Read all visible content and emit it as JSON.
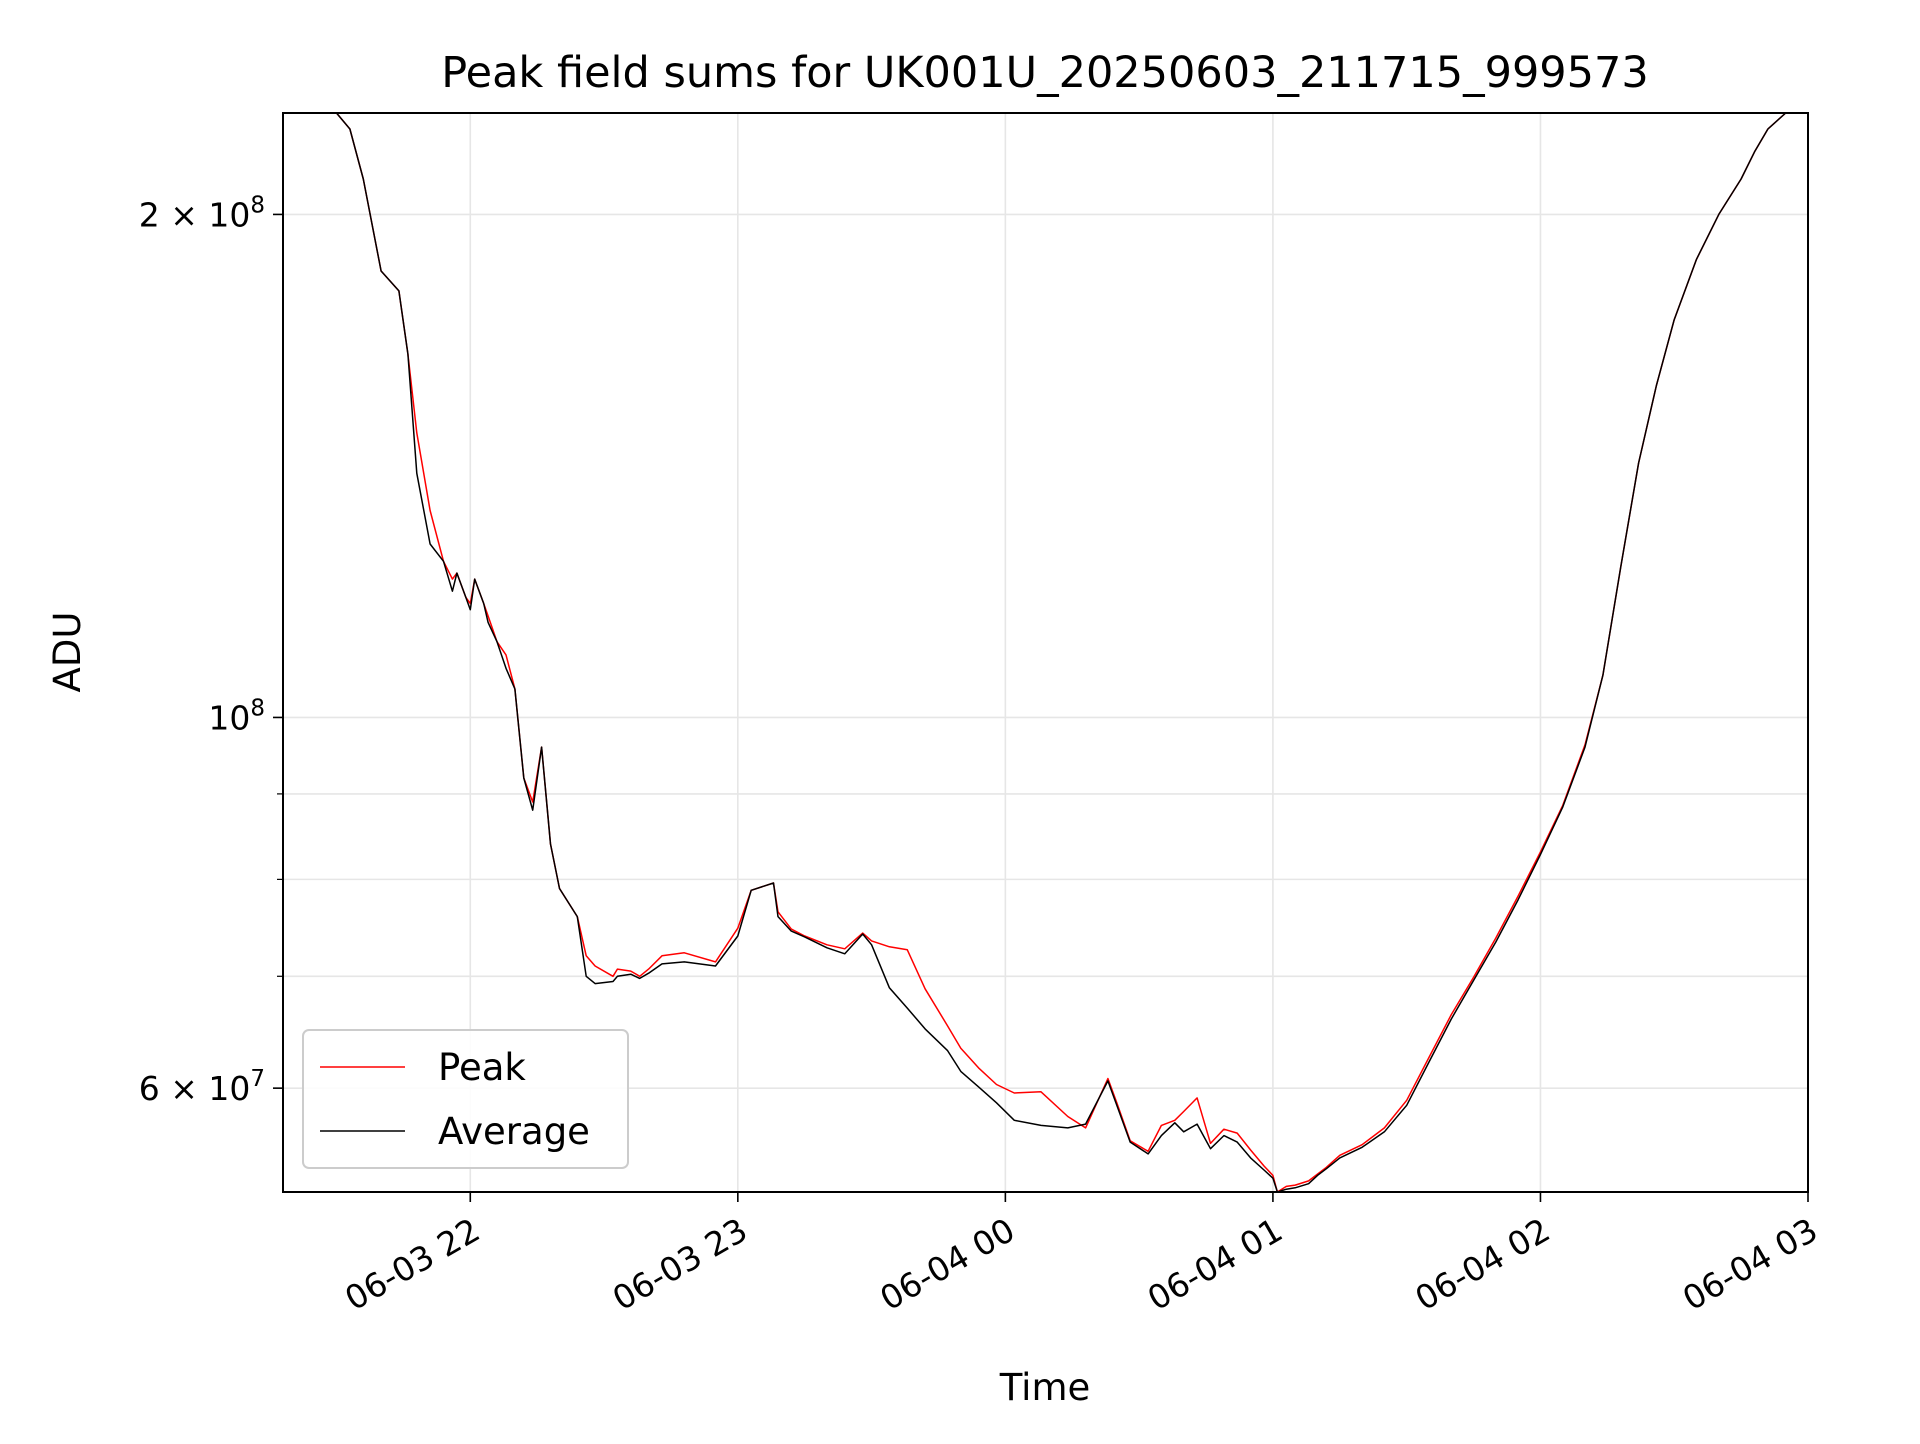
{
  "chart_data": {
    "type": "line",
    "title": "Peak field sums for UK001U_20250603_211715_999573",
    "xlabel": "Time",
    "ylabel": "ADU",
    "yscale": "log",
    "xlim": [
      "2025-06-03 21:18",
      "2025-06-04 03:00"
    ],
    "ylim": [
      52000000,
      230000000
    ],
    "x_ticks": [
      "06-03 22",
      "06-03 23",
      "06-04 00",
      "06-04 01",
      "06-04 02",
      "06-04 03"
    ],
    "x_tick_times": [
      "2025-06-03 22:00",
      "2025-06-03 23:00",
      "2025-06-04 00:00",
      "2025-06-04 01:00",
      "2025-06-04 02:00",
      "2025-06-04 03:00"
    ],
    "y_major_ticks": [
      {
        "value": 100000000,
        "mantissa": "",
        "base": "10",
        "exponent": "8"
      },
      {
        "value": 200000000,
        "mantissa": "2 × ",
        "base": "10",
        "exponent": "8"
      },
      {
        "value": 60000000,
        "mantissa": "6 × ",
        "base": "10",
        "exponent": "7"
      }
    ],
    "y_minor_values": [
      70000000,
      80000000,
      90000000
    ],
    "grid": true,
    "legend": {
      "position": "lower-left"
    },
    "series": [
      {
        "name": "Peak",
        "color": "#ff0000",
        "x": [
          "2025-06-03 21:18",
          "2025-06-03 21:25",
          "2025-06-03 21:30",
          "2025-06-03 21:33",
          "2025-06-03 21:36",
          "2025-06-03 21:40",
          "2025-06-03 21:44",
          "2025-06-03 21:46",
          "2025-06-03 21:48",
          "2025-06-03 21:51",
          "2025-06-03 21:54",
          "2025-06-03 21:56",
          "2025-06-03 21:57",
          "2025-06-03 21:59",
          "2025-06-03 22:00",
          "2025-06-03 22:01",
          "2025-06-03 22:03",
          "2025-06-03 22:04",
          "2025-06-03 22:06",
          "2025-06-03 22:08",
          "2025-06-03 22:10",
          "2025-06-03 22:12",
          "2025-06-03 22:14",
          "2025-06-03 22:16",
          "2025-06-03 22:18",
          "2025-06-03 22:20",
          "2025-06-03 22:24",
          "2025-06-03 22:26",
          "2025-06-03 22:28",
          "2025-06-03 22:32",
          "2025-06-03 22:33",
          "2025-06-03 22:36",
          "2025-06-03 22:38",
          "2025-06-03 22:40",
          "2025-06-03 22:43",
          "2025-06-03 22:48",
          "2025-06-03 22:55",
          "2025-06-03 23:00",
          "2025-06-03 23:03",
          "2025-06-03 23:08",
          "2025-06-03 23:09",
          "2025-06-03 23:12",
          "2025-06-03 23:15",
          "2025-06-03 23:20",
          "2025-06-03 23:24",
          "2025-06-03 23:28",
          "2025-06-03 23:30",
          "2025-06-03 23:34",
          "2025-06-03 23:38",
          "2025-06-03 23:42",
          "2025-06-03 23:47",
          "2025-06-03 23:50",
          "2025-06-03 23:54",
          "2025-06-03 23:58",
          "2025-06-04 00:02",
          "2025-06-04 00:08",
          "2025-06-04 00:14",
          "2025-06-04 00:18",
          "2025-06-04 00:23",
          "2025-06-04 00:25",
          "2025-06-04 00:28",
          "2025-06-04 00:32",
          "2025-06-04 00:35",
          "2025-06-04 00:38",
          "2025-06-04 00:40",
          "2025-06-04 00:43",
          "2025-06-04 00:46",
          "2025-06-04 00:49",
          "2025-06-04 00:52",
          "2025-06-04 00:55",
          "2025-06-04 00:58",
          "2025-06-04 01:00",
          "2025-06-04 01:01",
          "2025-06-04 01:03",
          "2025-06-04 01:05",
          "2025-06-04 01:08",
          "2025-06-04 01:10",
          "2025-06-04 01:12",
          "2025-06-04 01:15",
          "2025-06-04 01:20",
          "2025-06-04 01:25",
          "2025-06-04 01:30",
          "2025-06-04 01:35",
          "2025-06-04 01:40",
          "2025-06-04 01:45",
          "2025-06-04 01:50",
          "2025-06-04 01:55",
          "2025-06-04 02:00",
          "2025-06-04 02:05",
          "2025-06-04 02:10",
          "2025-06-04 02:14",
          "2025-06-04 02:18",
          "2025-06-04 02:22",
          "2025-06-04 02:26",
          "2025-06-04 02:30",
          "2025-06-04 02:35",
          "2025-06-04 02:40",
          "2025-06-04 02:45",
          "2025-06-04 02:48",
          "2025-06-04 02:51",
          "2025-06-04 02:55",
          "2025-06-04 03:00"
        ],
        "y": [
          230000000,
          230000000,
          230000000,
          225000000,
          210000000,
          185000000,
          180000000,
          165000000,
          148000000,
          133000000,
          124000000,
          121000000,
          122000000,
          118000000,
          117000000,
          121000000,
          117000000,
          115000000,
          111000000,
          109000000,
          104000000,
          92000000,
          89000000,
          96000000,
          84000000,
          79000000,
          76000000,
          72000000,
          71000000,
          70000000,
          70700000,
          70500000,
          70000000,
          70700000,
          72000000,
          72300000,
          71400000,
          74800000,
          78800000,
          79600000,
          76500000,
          74700000,
          74000000,
          73100000,
          72700000,
          74300000,
          73500000,
          72900000,
          72600000,
          68800000,
          65400000,
          63400000,
          61700000,
          60300000,
          59600000,
          59700000,
          57700000,
          56800000,
          60800000,
          58800000,
          55800000,
          55000000,
          57000000,
          57400000,
          58100000,
          59200000,
          55600000,
          56700000,
          56400000,
          55100000,
          53900000,
          53200000,
          52000000,
          52400000,
          52500000,
          52800000,
          53300000,
          53800000,
          54700000,
          55500000,
          56800000,
          59000000,
          62600000,
          66400000,
          69900000,
          73800000,
          78200000,
          83100000,
          88600000,
          96300000,
          106000000,
          123000000,
          142000000,
          158000000,
          173000000,
          188000000,
          200000000,
          210000000,
          218000000,
          225000000,
          230000000,
          230000000
        ]
      },
      {
        "name": "Average",
        "color": "#000000",
        "x": [
          "2025-06-03 21:18",
          "2025-06-03 21:25",
          "2025-06-03 21:30",
          "2025-06-03 21:33",
          "2025-06-03 21:36",
          "2025-06-03 21:40",
          "2025-06-03 21:44",
          "2025-06-03 21:46",
          "2025-06-03 21:48",
          "2025-06-03 21:51",
          "2025-06-03 21:54",
          "2025-06-03 21:56",
          "2025-06-03 21:57",
          "2025-06-03 21:59",
          "2025-06-03 22:00",
          "2025-06-03 22:01",
          "2025-06-03 22:03",
          "2025-06-03 22:04",
          "2025-06-03 22:06",
          "2025-06-03 22:08",
          "2025-06-03 22:10",
          "2025-06-03 22:12",
          "2025-06-03 22:14",
          "2025-06-03 22:16",
          "2025-06-03 22:18",
          "2025-06-03 22:20",
          "2025-06-03 22:24",
          "2025-06-03 22:26",
          "2025-06-03 22:28",
          "2025-06-03 22:32",
          "2025-06-03 22:33",
          "2025-06-03 22:36",
          "2025-06-03 22:38",
          "2025-06-03 22:40",
          "2025-06-03 22:43",
          "2025-06-03 22:48",
          "2025-06-03 22:55",
          "2025-06-03 23:00",
          "2025-06-03 23:03",
          "2025-06-03 23:08",
          "2025-06-03 23:09",
          "2025-06-03 23:12",
          "2025-06-03 23:15",
          "2025-06-03 23:20",
          "2025-06-03 23:24",
          "2025-06-03 23:28",
          "2025-06-03 23:30",
          "2025-06-03 23:34",
          "2025-06-03 23:38",
          "2025-06-03 23:42",
          "2025-06-03 23:47",
          "2025-06-03 23:50",
          "2025-06-03 23:54",
          "2025-06-03 23:58",
          "2025-06-04 00:02",
          "2025-06-04 00:08",
          "2025-06-04 00:14",
          "2025-06-04 00:18",
          "2025-06-04 00:23",
          "2025-06-04 00:25",
          "2025-06-04 00:28",
          "2025-06-04 00:32",
          "2025-06-04 00:35",
          "2025-06-04 00:38",
          "2025-06-04 00:40",
          "2025-06-04 00:43",
          "2025-06-04 00:46",
          "2025-06-04 00:49",
          "2025-06-04 00:52",
          "2025-06-04 00:55",
          "2025-06-04 00:58",
          "2025-06-04 01:00",
          "2025-06-04 01:01",
          "2025-06-04 01:03",
          "2025-06-04 01:05",
          "2025-06-04 01:08",
          "2025-06-04 01:10",
          "2025-06-04 01:12",
          "2025-06-04 01:15",
          "2025-06-04 01:20",
          "2025-06-04 01:25",
          "2025-06-04 01:30",
          "2025-06-04 01:35",
          "2025-06-04 01:40",
          "2025-06-04 01:45",
          "2025-06-04 01:50",
          "2025-06-04 01:55",
          "2025-06-04 02:00",
          "2025-06-04 02:05",
          "2025-06-04 02:10",
          "2025-06-04 02:14",
          "2025-06-04 02:18",
          "2025-06-04 02:22",
          "2025-06-04 02:26",
          "2025-06-04 02:30",
          "2025-06-04 02:35",
          "2025-06-04 02:40",
          "2025-06-04 02:45",
          "2025-06-04 02:48",
          "2025-06-04 02:51",
          "2025-06-04 02:55",
          "2025-06-04 03:00"
        ],
        "y": [
          230000000,
          230000000,
          230000000,
          225000000,
          210000000,
          185000000,
          180000000,
          165000000,
          140000000,
          127000000,
          124000000,
          119000000,
          122000000,
          118000000,
          116000000,
          121000000,
          117000000,
          114000000,
          111000000,
          107000000,
          104000000,
          92000000,
          88000000,
          96000000,
          84000000,
          79000000,
          76000000,
          70000000,
          69300000,
          69500000,
          70000000,
          70200000,
          69800000,
          70300000,
          71200000,
          71400000,
          71000000,
          74000000,
          78800000,
          79600000,
          76000000,
          74500000,
          73900000,
          72800000,
          72200000,
          74200000,
          73100000,
          68900000,
          67000000,
          65100000,
          63200000,
          61400000,
          60100000,
          58800000,
          57400000,
          57000000,
          56800000,
          57100000,
          60600000,
          58600000,
          55700000,
          54800000,
          56200000,
          57200000,
          56500000,
          57100000,
          55200000,
          56200000,
          55700000,
          54500000,
          53600000,
          53000000,
          52000000,
          52200000,
          52300000,
          52600000,
          53200000,
          53700000,
          54500000,
          55300000,
          56500000,
          58600000,
          62200000,
          66000000,
          69600000,
          73400000,
          77800000,
          82800000,
          88400000,
          96000000,
          106000000,
          123000000,
          142000000,
          158000000,
          173000000,
          188000000,
          200000000,
          210000000,
          218000000,
          225000000,
          230000000,
          230000000
        ]
      }
    ]
  }
}
